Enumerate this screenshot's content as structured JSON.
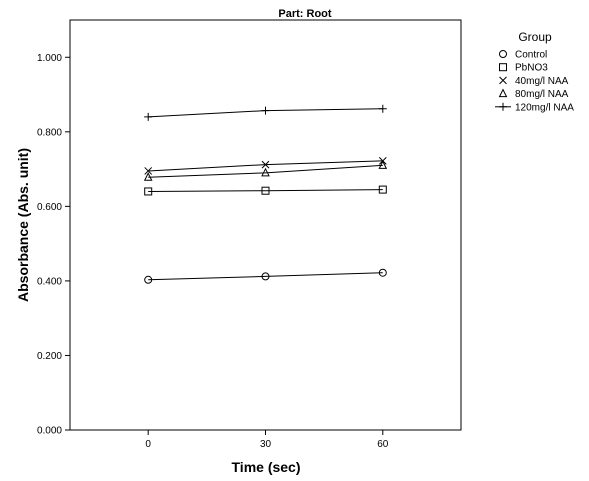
{
  "chart_data": {
    "type": "line",
    "title": "Part: Root",
    "xlabel": "Time (sec)",
    "ylabel": "Absorbance (Abs. unit)",
    "x": [
      0,
      30,
      60
    ],
    "x_tick_labels": [
      "0",
      "30",
      "60"
    ],
    "xlim": [
      -20,
      80
    ],
    "ylim": [
      0,
      1.1
    ],
    "y_ticks": [
      0,
      0.2,
      0.4,
      0.6,
      0.8,
      1.0
    ],
    "y_tick_labels": [
      "0.000",
      "0.200",
      "0.400",
      "0.600",
      "0.800",
      "1.000"
    ],
    "grid": false,
    "legend": {
      "title": "Group",
      "placement": "right"
    },
    "series": [
      {
        "name": "Control",
        "marker": "circle",
        "values": [
          0.403,
          0.412,
          0.422
        ]
      },
      {
        "name": "PbNO3",
        "marker": "square",
        "values": [
          0.64,
          0.642,
          0.645
        ]
      },
      {
        "name": "40mg/l NAA",
        "marker": "x",
        "values": [
          0.695,
          0.712,
          0.722
        ]
      },
      {
        "name": "80mg/l NAA",
        "marker": "triangle",
        "values": [
          0.678,
          0.69,
          0.71
        ]
      },
      {
        "name": "120mg/l NAA",
        "marker": "plus",
        "values": [
          0.84,
          0.857,
          0.862
        ]
      }
    ]
  }
}
